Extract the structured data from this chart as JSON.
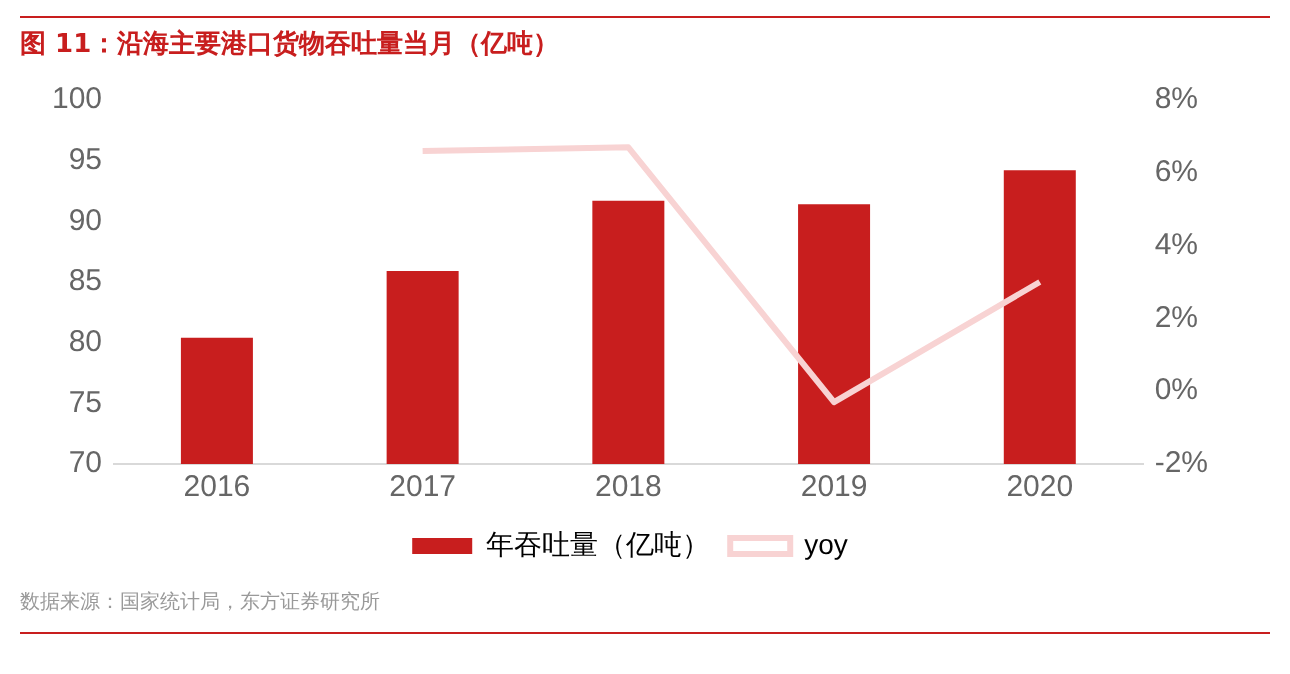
{
  "chart_data": {
    "type": "bar",
    "title": "图 11：沿海主要港口货物吞吐量当月（亿吨）",
    "categories": [
      "2016",
      "2017",
      "2018",
      "2019",
      "2020"
    ],
    "series": [
      {
        "name": "年吞吐量（亿吨）",
        "color": "#c81e1e",
        "values": [
          80.4,
          85.9,
          91.7,
          91.4,
          94.2
        ]
      },
      {
        "name": "yoy",
        "type": "line",
        "axis": "y2",
        "color": "#f8d3d3",
        "values": [
          null,
          6.6,
          6.7,
          -0.3,
          3.0
        ]
      }
    ],
    "ylim": [
      70,
      100
    ],
    "yticks": [
      70,
      75,
      80,
      85,
      90,
      95,
      100
    ],
    "y2lim": [
      -2,
      8
    ],
    "y2ticks": [
      {
        "value": -2,
        "label": "-2%"
      },
      {
        "value": 0,
        "label": "0%"
      },
      {
        "value": 2,
        "label": "2%"
      },
      {
        "value": 4,
        "label": "4%"
      },
      {
        "value": 6,
        "label": "6%"
      },
      {
        "value": 8,
        "label": "8%"
      }
    ],
    "grid": false,
    "legend": "bottom",
    "marker": "none",
    "annotations": [
      "数据来源：国家统计局，东方证券研究所"
    ]
  }
}
